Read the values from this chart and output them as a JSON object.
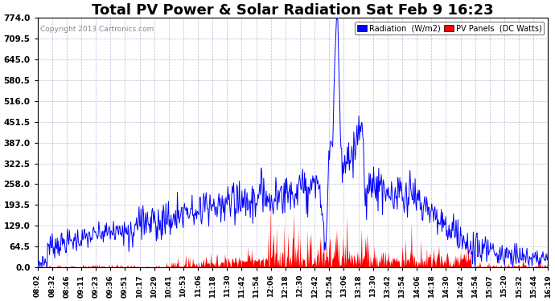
{
  "title": "Total PV Power & Solar Radiation Sat Feb 9 16:23",
  "copyright": "Copyright 2013 Cartronics.com",
  "legend_labels": [
    "Radiation  (W/m2)",
    "PV Panels  (DC Watts)"
  ],
  "legend_colors": [
    "#0000ff",
    "#ff0000"
  ],
  "y_max": 774.0,
  "y_min": 0.0,
  "y_ticks": [
    0.0,
    64.5,
    129.0,
    193.5,
    258.0,
    322.5,
    387.0,
    451.5,
    516.0,
    580.5,
    645.0,
    709.5,
    774.0
  ],
  "background_color": "#ffffff",
  "grid_color": "#aaaaaa",
  "plot_bg": "#ffffff",
  "title_fontsize": 13,
  "x_labels": [
    "08:02",
    "08:32",
    "08:46",
    "09:11",
    "09:23",
    "09:36",
    "09:51",
    "10:17",
    "10:29",
    "10:41",
    "10:53",
    "11:06",
    "11:18",
    "11:30",
    "11:42",
    "11:54",
    "12:06",
    "12:18",
    "12:30",
    "12:42",
    "12:54",
    "13:06",
    "13:18",
    "13:30",
    "13:42",
    "13:54",
    "14:06",
    "14:18",
    "14:30",
    "14:42",
    "14:54",
    "15:07",
    "15:20",
    "15:32",
    "15:44",
    "16:19"
  ]
}
